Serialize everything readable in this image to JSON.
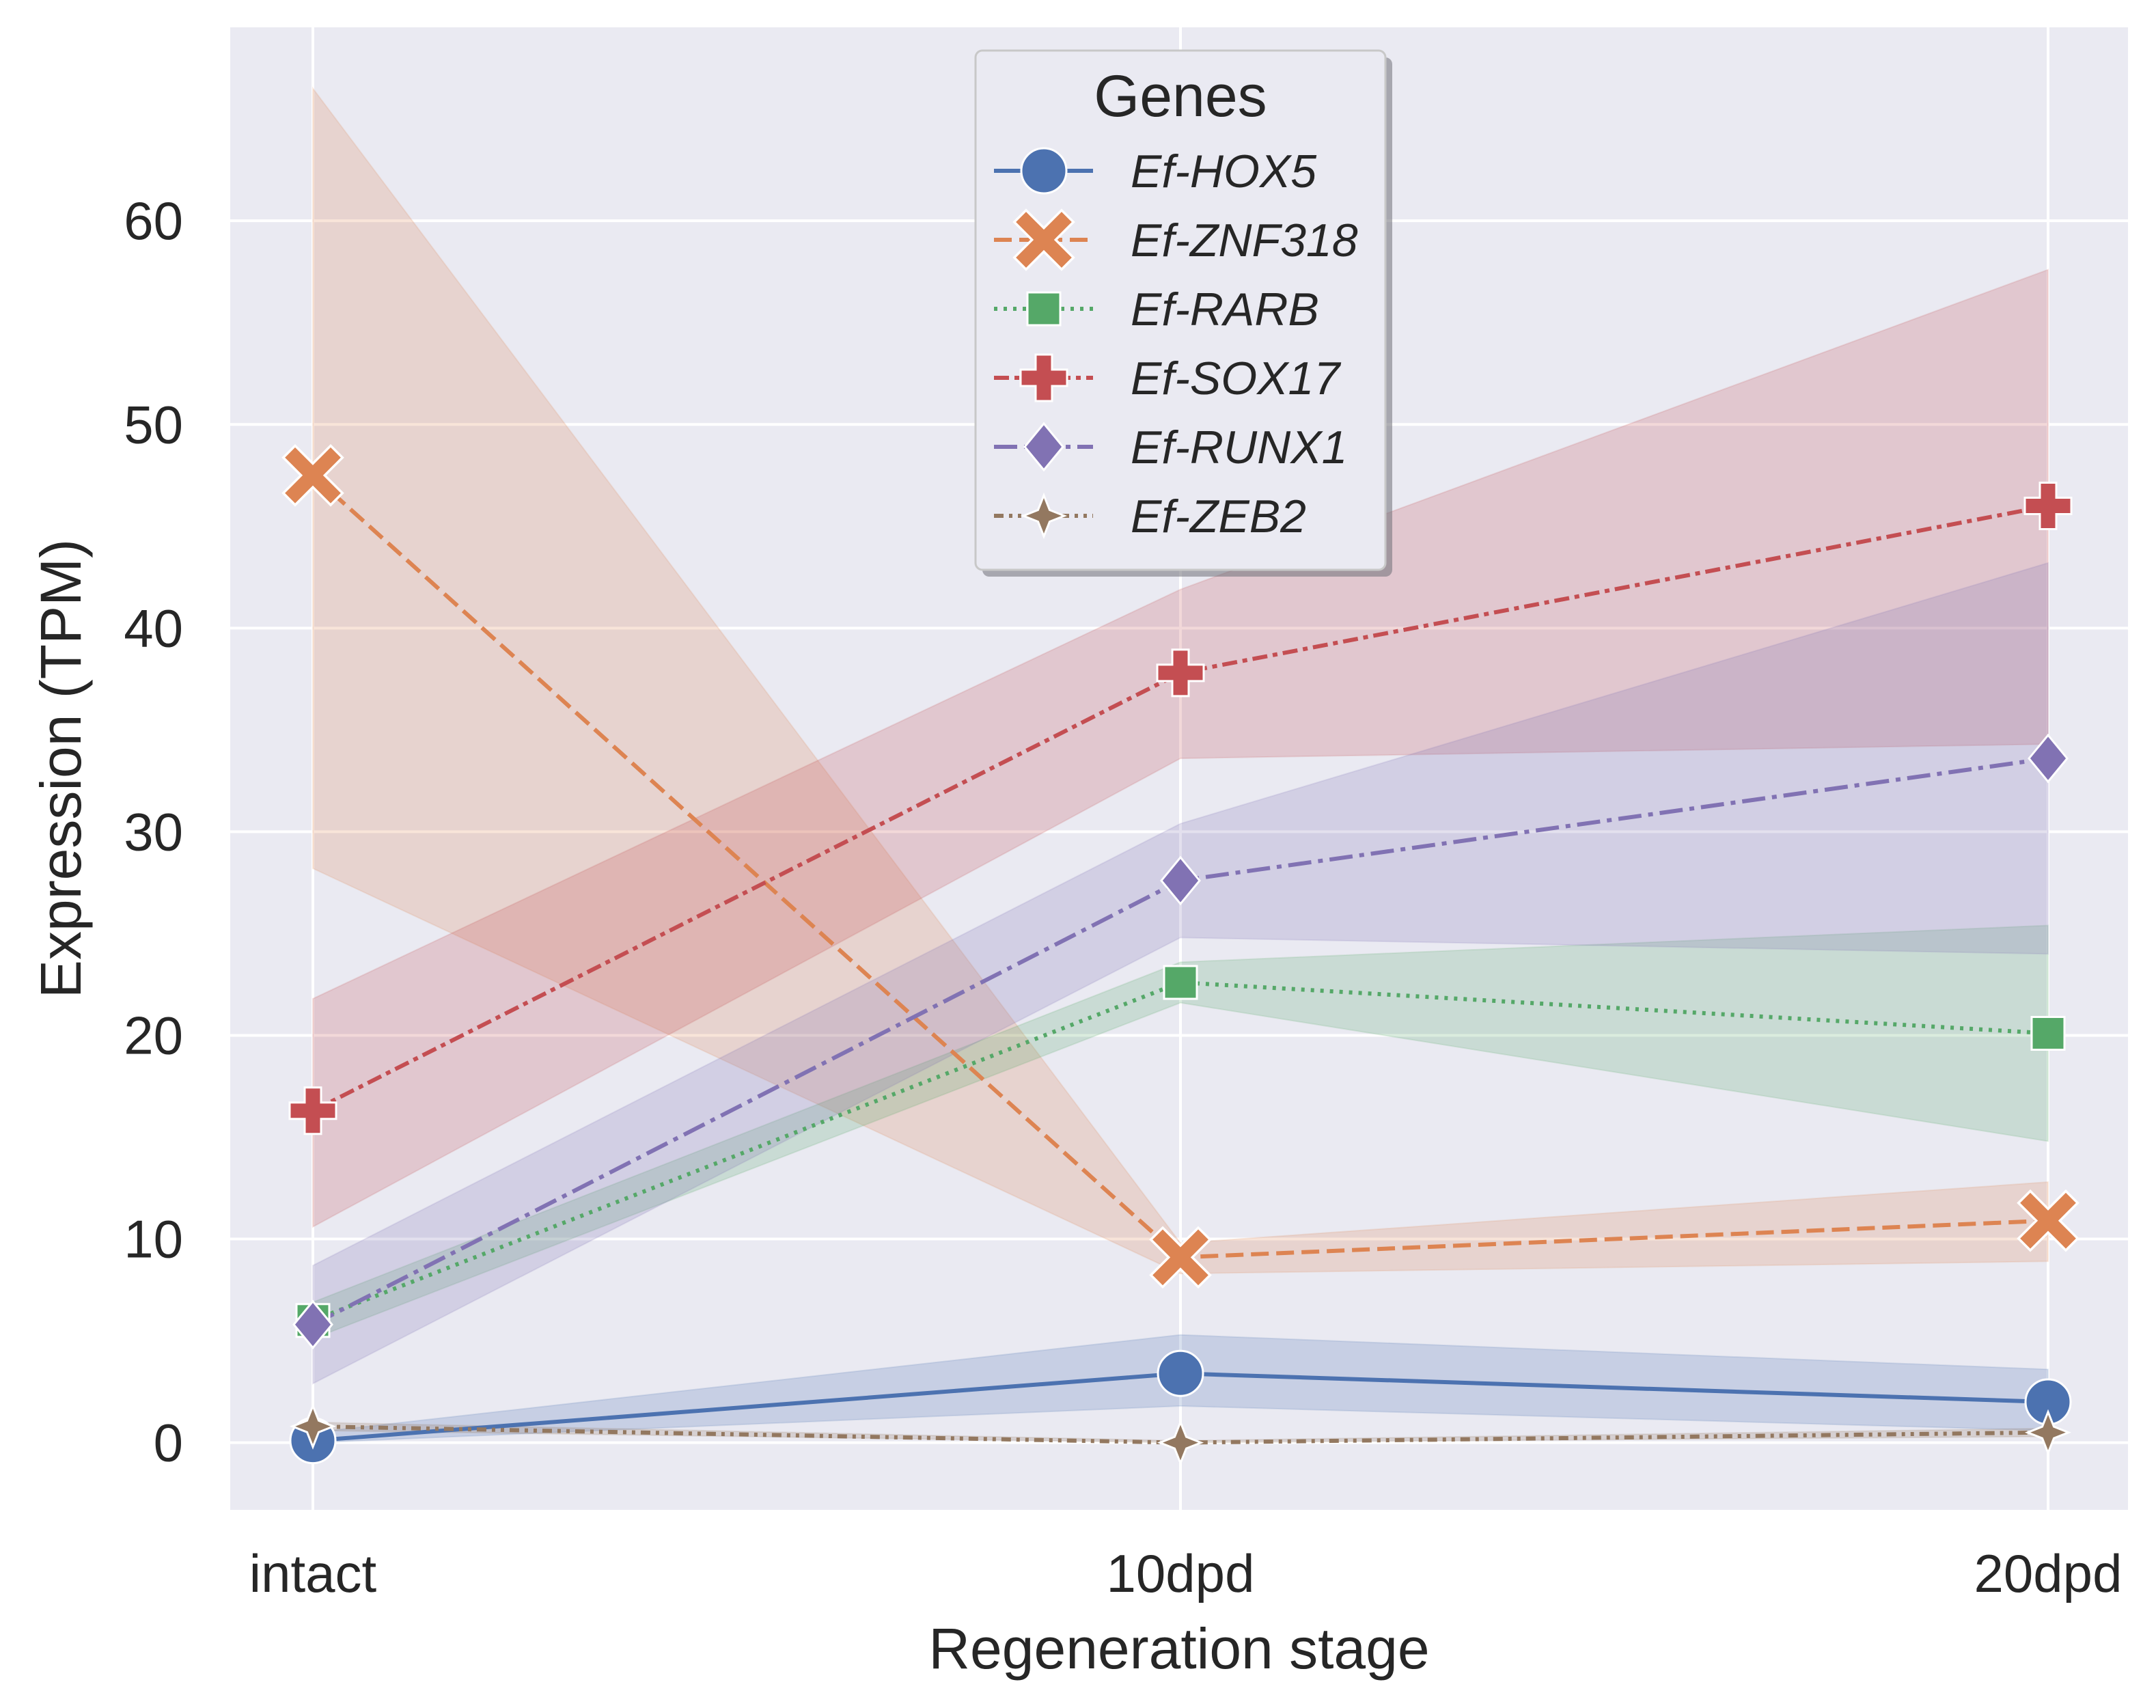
{
  "chart_data": {
    "type": "line",
    "title": "",
    "xlabel": "Regeneration stage",
    "ylabel": "Expression (TPM)",
    "categories": [
      "intact",
      "10dpd",
      "20dpd"
    ],
    "ylim": [
      -3.3,
      69.5
    ],
    "yticks": [
      0,
      10,
      20,
      30,
      40,
      50,
      60
    ],
    "ytick_labels": [
      "0",
      "10",
      "20",
      "30",
      "40",
      "50",
      "60"
    ],
    "grid": true,
    "legend": {
      "title": "Genes",
      "position": "top-center"
    },
    "series": [
      {
        "name": "Ef-HOX5",
        "color": "#4c72b0",
        "marker": "circle",
        "dash": "solid",
        "values": [
          0.1,
          3.4,
          2.0
        ],
        "ci_low": [
          0.0,
          1.8,
          0.6
        ],
        "ci_high": [
          0.5,
          5.3,
          3.6
        ]
      },
      {
        "name": "Ef-ZNF318",
        "color": "#dd8452",
        "marker": "x",
        "dash": "dashed",
        "values": [
          47.5,
          9.1,
          10.9
        ],
        "ci_low": [
          28.2,
          8.3,
          8.9
        ],
        "ci_high": [
          66.5,
          9.8,
          12.8
        ]
      },
      {
        "name": "Ef-RARB",
        "color": "#55a868",
        "marker": "square",
        "dash": "dotted",
        "values": [
          6.0,
          22.6,
          20.1
        ],
        "ci_low": [
          5.1,
          21.6,
          14.8
        ],
        "ci_high": [
          6.9,
          23.6,
          25.4
        ]
      },
      {
        "name": "Ef-SOX17",
        "color": "#c44e52",
        "marker": "plus",
        "dash": "dashed-dotted",
        "values": [
          16.3,
          37.8,
          46.0
        ],
        "ci_low": [
          10.6,
          33.6,
          34.3
        ],
        "ci_high": [
          21.8,
          41.9,
          57.6
        ]
      },
      {
        "name": "Ef-RUNX1",
        "color": "#8172b3",
        "marker": "diamond",
        "dash": "dash-dot",
        "values": [
          5.8,
          27.6,
          33.6
        ],
        "ci_low": [
          2.9,
          24.8,
          24.0
        ],
        "ci_high": [
          8.7,
          30.4,
          43.2
        ]
      },
      {
        "name": "Ef-ZEB2",
        "color": "#937860",
        "marker": "star4",
        "dash": "dash-dot-dot",
        "values": [
          0.8,
          0.0,
          0.5
        ],
        "ci_low": [
          0.6,
          0.0,
          0.3
        ],
        "ci_high": [
          1.0,
          0.1,
          0.7
        ]
      }
    ]
  }
}
